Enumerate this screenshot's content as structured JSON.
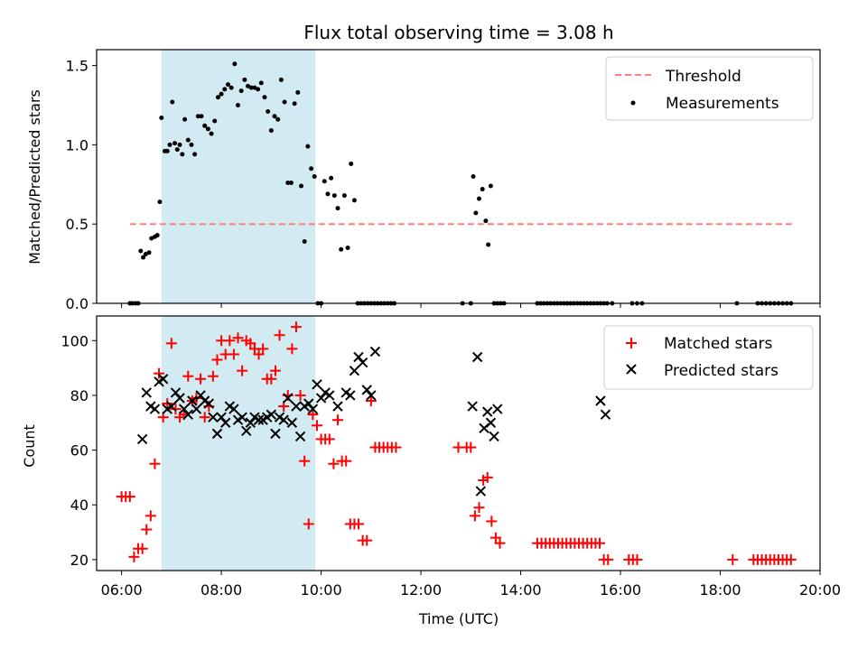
{
  "colors": {
    "threshold": "#ff7f7f",
    "measurement": "#000000",
    "matched": "#ff0000",
    "predicted": "#000000",
    "shade": "#add8e6"
  },
  "chart_data": [
    {
      "type": "scatter",
      "title": "Flux total observing time = 3.08 h",
      "xlabel": "",
      "ylabel": "Matched/Predicted stars",
      "xlim": [
        "05:30",
        "20:00"
      ],
      "ylim": [
        0,
        1.6
      ],
      "y_ticks": [
        0.0,
        0.5,
        1.0,
        1.5
      ],
      "y_tick_labels": [
        "0.0",
        "0.5",
        "1.0",
        "1.5"
      ],
      "x_ticks": [
        "06:00",
        "08:00",
        "10:00",
        "12:00",
        "14:00",
        "16:00",
        "18:00",
        "20:00"
      ],
      "legend_position": "top-right",
      "shaded_span": [
        "06:48",
        "09:53"
      ],
      "threshold": {
        "name": "Threshold",
        "y": 0.5,
        "x_range": [
          "06:10",
          "19:30"
        ]
      },
      "series": [
        {
          "name": "Measurements",
          "x": [
            "06:10",
            "06:13",
            "06:17",
            "06:20",
            "06:23",
            "06:26",
            "06:29",
            "06:33",
            "06:36",
            "06:40",
            "06:43",
            "06:46",
            "06:48",
            "06:52",
            "06:55",
            "06:58",
            "07:01",
            "07:04",
            "07:07",
            "07:10",
            "07:13",
            "07:16",
            "07:20",
            "07:24",
            "07:28",
            "07:32",
            "07:36",
            "07:40",
            "07:44",
            "07:48",
            "07:52",
            "07:56",
            "08:00",
            "08:04",
            "08:08",
            "08:12",
            "08:16",
            "08:20",
            "08:24",
            "08:28",
            "08:32",
            "08:36",
            "08:40",
            "08:44",
            "08:48",
            "08:52",
            "08:56",
            "09:00",
            "09:04",
            "09:08",
            "09:12",
            "09:16",
            "09:20",
            "09:24",
            "09:28",
            "09:32",
            "09:36",
            "09:40",
            "09:44",
            "09:48",
            "09:52",
            "09:56",
            "10:00",
            "10:04",
            "10:08",
            "10:12",
            "10:16",
            "10:20",
            "10:24",
            "10:28",
            "10:32",
            "10:36",
            "10:40",
            "10:44",
            "10:48",
            "10:52",
            "10:56",
            "11:00",
            "11:04",
            "11:08",
            "11:12",
            "11:16",
            "11:20",
            "11:24",
            "11:28",
            "12:50",
            "13:00",
            "13:03",
            "13:06",
            "13:10",
            "13:14",
            "13:18",
            "13:21",
            "13:24",
            "13:28",
            "13:32",
            "13:36",
            "13:40",
            "14:20",
            "14:24",
            "14:28",
            "14:32",
            "14:36",
            "14:40",
            "14:44",
            "14:48",
            "14:52",
            "14:56",
            "15:00",
            "15:04",
            "15:08",
            "15:12",
            "15:16",
            "15:20",
            "15:24",
            "15:28",
            "15:32",
            "15:36",
            "15:40",
            "15:44",
            "15:50",
            "16:14",
            "16:20",
            "16:26",
            "18:20",
            "18:45",
            "18:50",
            "18:55",
            "19:00",
            "19:05",
            "19:10",
            "19:15",
            "19:20",
            "19:25"
          ],
          "y": [
            0,
            0,
            0,
            0,
            0.33,
            0.29,
            0.31,
            0.32,
            0.41,
            0.42,
            0.43,
            0.64,
            1.17,
            0.96,
            0.96,
            1.0,
            1.27,
            1.01,
            0.97,
            1.0,
            0.94,
            1.16,
            1.03,
            1.0,
            0.94,
            1.18,
            1.18,
            1.12,
            1.1,
            1.07,
            1.15,
            1.3,
            1.32,
            1.35,
            1.38,
            1.36,
            1.51,
            1.25,
            1.34,
            1.41,
            1.37,
            1.36,
            1.36,
            1.35,
            1.39,
            1.3,
            1.21,
            1.09,
            1.18,
            1.16,
            1.41,
            1.27,
            0.76,
            0.76,
            1.26,
            1.33,
            0.74,
            0.39,
            0.99,
            0.85,
            0.8,
            0.0,
            0.0,
            0.77,
            0.69,
            0.79,
            0.68,
            0.6,
            0.34,
            0.68,
            0.35,
            0.88,
            0.65,
            0.0,
            0.0,
            0.0,
            0.0,
            0.0,
            0.0,
            0.0,
            0.0,
            0.0,
            0.0,
            0.0,
            0.0,
            0.0,
            0.0,
            0.8,
            0.57,
            0.66,
            0.72,
            0.52,
            0.37,
            0.74,
            0.0,
            0.0,
            0.0,
            0.0,
            0.0,
            0.0,
            0.0,
            0.0,
            0.0,
            0.0,
            0.0,
            0.0,
            0.0,
            0.0,
            0.0,
            0.0,
            0.0,
            0.0,
            0.0,
            0.0,
            0.0,
            0.0,
            0.0,
            0.0,
            0.0,
            0.0,
            0.0,
            0.0,
            0.0,
            0.0,
            0.0,
            0.0,
            0.0,
            0.0,
            0.0,
            0.0,
            0.0,
            0.0,
            0.0,
            0.0
          ]
        }
      ]
    },
    {
      "type": "scatter",
      "title": "",
      "xlabel": "Time (UTC)",
      "ylabel": "Count",
      "xlim": [
        "05:30",
        "20:00"
      ],
      "ylim": [
        16,
        109
      ],
      "y_ticks": [
        20,
        40,
        60,
        80,
        100
      ],
      "y_tick_labels": [
        "20",
        "40",
        "60",
        "80",
        "100"
      ],
      "x_ticks": [
        "06:00",
        "08:00",
        "10:00",
        "12:00",
        "14:00",
        "16:00",
        "18:00",
        "20:00"
      ],
      "x_tick_labels": [
        "06:00",
        "08:00",
        "10:00",
        "12:00",
        "14:00",
        "16:00",
        "18:00",
        "20:00"
      ],
      "legend_position": "top-right",
      "shaded_span": [
        "06:48",
        "09:53"
      ],
      "series": [
        {
          "name": "Matched stars",
          "x": [
            "06:00",
            "06:05",
            "06:10",
            "06:15",
            "06:20",
            "06:25",
            "06:30",
            "06:35",
            "06:40",
            "06:45",
            "06:50",
            "06:55",
            "07:00",
            "07:05",
            "07:10",
            "07:15",
            "07:20",
            "07:25",
            "07:30",
            "07:35",
            "07:40",
            "07:45",
            "07:50",
            "07:55",
            "08:00",
            "08:05",
            "08:10",
            "08:15",
            "08:20",
            "08:25",
            "08:30",
            "08:35",
            "08:40",
            "08:45",
            "08:50",
            "08:55",
            "09:00",
            "09:05",
            "09:10",
            "09:15",
            "09:20",
            "09:25",
            "09:30",
            "09:35",
            "09:40",
            "09:45",
            "09:50",
            "09:55",
            "10:00",
            "10:05",
            "10:10",
            "10:15",
            "10:20",
            "10:25",
            "10:30",
            "10:35",
            "10:40",
            "10:45",
            "10:50",
            "10:55",
            "11:00",
            "11:05",
            "11:10",
            "11:15",
            "11:20",
            "11:25",
            "11:30",
            "12:45",
            "12:55",
            "13:00",
            "13:05",
            "13:10",
            "13:15",
            "13:20",
            "13:25",
            "13:30",
            "13:35",
            "14:20",
            "14:25",
            "14:30",
            "14:35",
            "14:40",
            "14:45",
            "14:50",
            "14:55",
            "15:00",
            "15:05",
            "15:10",
            "15:15",
            "15:20",
            "15:25",
            "15:30",
            "15:35",
            "15:40",
            "15:45",
            "16:10",
            "16:15",
            "16:20",
            "18:15",
            "18:40",
            "18:45",
            "18:50",
            "18:55",
            "19:00",
            "19:05",
            "19:10",
            "19:15",
            "19:20",
            "19:25"
          ],
          "y": [
            43,
            43,
            43,
            21,
            24,
            24,
            31,
            36,
            55,
            88,
            72,
            77,
            99,
            75,
            72,
            73,
            87,
            78,
            79,
            86,
            72,
            76,
            87,
            93,
            100,
            95,
            100,
            95,
            101,
            89,
            100,
            99,
            97,
            95,
            97,
            86,
            86,
            89,
            102,
            76,
            80,
            97,
            105,
            80,
            56,
            33,
            73,
            69,
            64,
            64,
            64,
            55,
            71,
            56,
            56,
            33,
            33,
            33,
            27,
            27,
            78,
            61,
            61,
            61,
            61,
            61,
            61,
            61,
            61,
            61,
            36,
            39,
            49,
            50,
            34,
            28,
            26,
            26,
            26,
            26,
            26,
            26,
            26,
            26,
            26,
            26,
            26,
            26,
            26,
            26,
            26,
            26,
            26,
            20,
            20,
            20,
            20,
            20,
            20,
            20,
            20,
            20,
            20,
            20,
            20,
            20,
            20,
            20,
            20
          ],
          "note": ""
        },
        {
          "name": "Predicted stars",
          "x": [
            "06:25",
            "06:30",
            "06:35",
            "06:40",
            "06:45",
            "06:50",
            "06:55",
            "07:00",
            "07:05",
            "07:10",
            "07:15",
            "07:20",
            "07:25",
            "07:30",
            "07:35",
            "07:40",
            "07:45",
            "07:50",
            "07:55",
            "08:00",
            "08:05",
            "08:10",
            "08:15",
            "08:20",
            "08:25",
            "08:30",
            "08:35",
            "08:40",
            "08:45",
            "08:50",
            "08:55",
            "09:00",
            "09:05",
            "09:10",
            "09:15",
            "09:20",
            "09:25",
            "09:30",
            "09:35",
            "09:40",
            "09:45",
            "09:50",
            "09:55",
            "10:00",
            "10:05",
            "10:10",
            "10:20",
            "10:30",
            "10:35",
            "10:40",
            "10:45",
            "10:50",
            "10:55",
            "11:00",
            "11:05",
            "13:02",
            "13:08",
            "13:12",
            "13:16",
            "13:20",
            "13:24",
            "13:28",
            "13:32",
            "15:36",
            "15:42"
          ],
          "y": [
            64,
            81,
            76,
            75,
            85,
            86,
            75,
            76,
            81,
            79,
            75,
            73,
            78,
            75,
            80,
            78,
            77,
            72,
            66,
            72,
            70,
            76,
            75,
            71,
            72,
            67,
            70,
            72,
            71,
            71,
            72,
            73,
            66,
            72,
            71,
            79,
            70,
            76,
            65,
            76,
            77,
            75,
            84,
            79,
            81,
            80,
            76,
            81,
            80,
            89,
            94,
            92,
            82,
            80,
            96,
            76,
            94,
            45,
            68,
            74,
            70,
            65,
            75,
            78,
            73
          ]
        }
      ]
    }
  ]
}
